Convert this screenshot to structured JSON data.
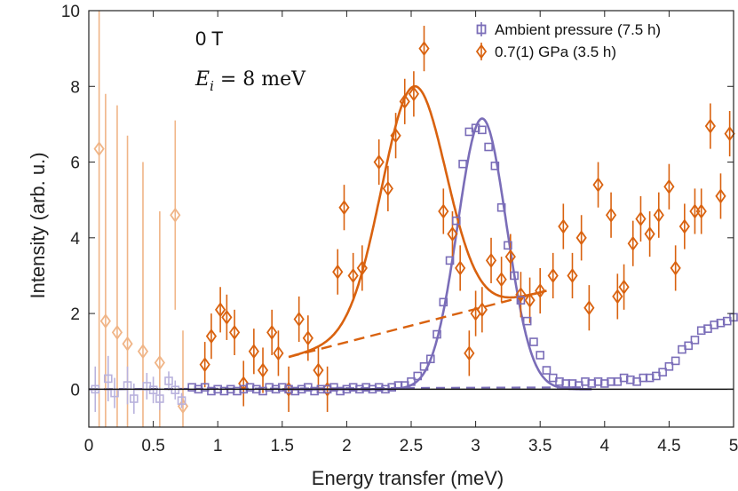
{
  "chart_data": {
    "type": "scatter",
    "xlabel": "Energy transfer (meV)",
    "ylabel": "Intensity (arb. u.)",
    "xlim": [
      0,
      5
    ],
    "ylim": [
      -1,
      10
    ],
    "xticks": [
      0,
      0.5,
      1,
      1.5,
      2,
      2.5,
      3,
      3.5,
      4,
      4.5,
      5
    ],
    "xtick_labels": [
      "0",
      "0.5",
      "1",
      "1.5",
      "2",
      "2.5",
      "3",
      "3.5",
      "4",
      "4.5",
      "5"
    ],
    "yticks": [
      0,
      2,
      4,
      6,
      8,
      10
    ],
    "ytick_labels": [
      "0",
      "2",
      "4",
      "6",
      "8",
      "10"
    ],
    "grid": false,
    "legend_position": "top-right",
    "annotations": {
      "field": "0 T",
      "energy": "E_i = 8 meV"
    },
    "colors": {
      "ambient": "#7A6DB8",
      "pressure": "#D9620F",
      "pressure_faded": "#F0B587",
      "ambient_faded": "#B9B2DD"
    },
    "series": [
      {
        "name": "Ambient pressure (7.5 h)",
        "marker": "square",
        "faded_points": [
          {
            "x": 0.05,
            "y": 0.0,
            "err": 0.6
          },
          {
            "x": 0.15,
            "y": 0.28,
            "err": 0.6
          },
          {
            "x": 0.2,
            "y": -0.1,
            "err": 0.4
          },
          {
            "x": 0.3,
            "y": 0.1,
            "err": 0.5
          },
          {
            "x": 0.35,
            "y": -0.25,
            "err": 0.4
          },
          {
            "x": 0.45,
            "y": 0.08,
            "err": 0.35
          },
          {
            "x": 0.5,
            "y": -0.02,
            "err": 0.35
          },
          {
            "x": 0.55,
            "y": -0.25,
            "err": 0.3
          },
          {
            "x": 0.62,
            "y": 0.22,
            "err": 0.25
          },
          {
            "x": 0.67,
            "y": -0.02,
            "err": 0.25
          },
          {
            "x": 0.72,
            "y": -0.3,
            "err": 0.2
          }
        ],
        "points": [
          {
            "x": 0.8,
            "y": 0.05
          },
          {
            "x": 0.85,
            "y": 0.0
          },
          {
            "x": 0.9,
            "y": 0.05
          },
          {
            "x": 0.95,
            "y": -0.05
          },
          {
            "x": 1.0,
            "y": 0.0
          },
          {
            "x": 1.05,
            "y": -0.05
          },
          {
            "x": 1.1,
            "y": 0.0
          },
          {
            "x": 1.15,
            "y": -0.05
          },
          {
            "x": 1.2,
            "y": 0.0
          },
          {
            "x": 1.25,
            "y": 0.05
          },
          {
            "x": 1.3,
            "y": 0.0
          },
          {
            "x": 1.35,
            "y": -0.05
          },
          {
            "x": 1.4,
            "y": 0.05
          },
          {
            "x": 1.45,
            "y": 0.0
          },
          {
            "x": 1.5,
            "y": 0.05
          },
          {
            "x": 1.55,
            "y": 0.0
          },
          {
            "x": 1.6,
            "y": -0.05
          },
          {
            "x": 1.65,
            "y": 0.0
          },
          {
            "x": 1.7,
            "y": 0.05
          },
          {
            "x": 1.75,
            "y": -0.05
          },
          {
            "x": 1.8,
            "y": 0.0
          },
          {
            "x": 1.85,
            "y": 0.0
          },
          {
            "x": 1.9,
            "y": 0.05
          },
          {
            "x": 1.95,
            "y": -0.05
          },
          {
            "x": 2.0,
            "y": 0.0
          },
          {
            "x": 2.05,
            "y": 0.05
          },
          {
            "x": 2.1,
            "y": 0.0
          },
          {
            "x": 2.15,
            "y": 0.05
          },
          {
            "x": 2.2,
            "y": 0.0
          },
          {
            "x": 2.25,
            "y": 0.05
          },
          {
            "x": 2.3,
            "y": 0.0
          },
          {
            "x": 2.35,
            "y": 0.05
          },
          {
            "x": 2.4,
            "y": 0.1
          },
          {
            "x": 2.45,
            "y": 0.1
          },
          {
            "x": 2.5,
            "y": 0.2
          },
          {
            "x": 2.55,
            "y": 0.35
          },
          {
            "x": 2.6,
            "y": 0.6
          },
          {
            "x": 2.65,
            "y": 0.8
          },
          {
            "x": 2.7,
            "y": 1.45
          },
          {
            "x": 2.75,
            "y": 2.3
          },
          {
            "x": 2.8,
            "y": 3.4
          },
          {
            "x": 2.85,
            "y": 4.45
          },
          {
            "x": 2.9,
            "y": 5.95
          },
          {
            "x": 2.95,
            "y": 6.8
          },
          {
            "x": 3.0,
            "y": 6.9
          },
          {
            "x": 3.05,
            "y": 6.85
          },
          {
            "x": 3.1,
            "y": 6.4
          },
          {
            "x": 3.15,
            "y": 5.9
          },
          {
            "x": 3.2,
            "y": 4.8
          },
          {
            "x": 3.25,
            "y": 3.8
          },
          {
            "x": 3.3,
            "y": 3.0
          },
          {
            "x": 3.35,
            "y": 2.35
          },
          {
            "x": 3.4,
            "y": 1.8
          },
          {
            "x": 3.45,
            "y": 1.25
          },
          {
            "x": 3.5,
            "y": 0.9
          },
          {
            "x": 3.55,
            "y": 0.5
          },
          {
            "x": 3.6,
            "y": 0.3
          },
          {
            "x": 3.65,
            "y": 0.2
          },
          {
            "x": 3.7,
            "y": 0.15
          },
          {
            "x": 3.75,
            "y": 0.15
          },
          {
            "x": 3.8,
            "y": 0.1
          },
          {
            "x": 3.85,
            "y": 0.2
          },
          {
            "x": 3.9,
            "y": 0.15
          },
          {
            "x": 3.95,
            "y": 0.2
          },
          {
            "x": 4.0,
            "y": 0.15
          },
          {
            "x": 4.05,
            "y": 0.2
          },
          {
            "x": 4.1,
            "y": 0.2
          },
          {
            "x": 4.15,
            "y": 0.3
          },
          {
            "x": 4.2,
            "y": 0.25
          },
          {
            "x": 4.25,
            "y": 0.2
          },
          {
            "x": 4.3,
            "y": 0.3
          },
          {
            "x": 4.35,
            "y": 0.3
          },
          {
            "x": 4.4,
            "y": 0.35
          },
          {
            "x": 4.45,
            "y": 0.45
          },
          {
            "x": 4.5,
            "y": 0.6
          },
          {
            "x": 4.55,
            "y": 0.75
          },
          {
            "x": 4.6,
            "y": 1.05
          },
          {
            "x": 4.65,
            "y": 1.15
          },
          {
            "x": 4.7,
            "y": 1.3
          },
          {
            "x": 4.75,
            "y": 1.55
          },
          {
            "x": 4.8,
            "y": 1.6
          },
          {
            "x": 4.85,
            "y": 1.7
          },
          {
            "x": 4.9,
            "y": 1.75
          },
          {
            "x": 4.95,
            "y": 1.8
          },
          {
            "x": 5.0,
            "y": 1.9
          }
        ],
        "fit": {
          "type": "gaussian",
          "center": 3.05,
          "amplitude": 7.15,
          "sigma": 0.19,
          "range": [
            1.5,
            3.9
          ]
        },
        "baseline": {
          "x": [
            0.0,
            3.85
          ],
          "y": [
            0.0,
            0.05
          ]
        }
      },
      {
        "name": "0.7(1) GPa (3.5 h)",
        "marker": "diamond",
        "faded_points": [
          {
            "x": 0.08,
            "y": 6.35,
            "err": 9.0
          },
          {
            "x": 0.13,
            "y": 1.8,
            "err": 6.0
          },
          {
            "x": 0.22,
            "y": 1.5,
            "err": 6.0
          },
          {
            "x": 0.3,
            "y": 1.2,
            "err": 5.5
          },
          {
            "x": 0.42,
            "y": 1.0,
            "err": 5.0
          },
          {
            "x": 0.55,
            "y": 0.7,
            "err": 4.0
          },
          {
            "x": 0.67,
            "y": 4.6,
            "err": 2.5
          },
          {
            "x": 0.73,
            "y": -0.45,
            "err": 2.0
          }
        ],
        "points": [
          {
            "x": 0.9,
            "y": 0.65,
            "err": 0.6
          },
          {
            "x": 0.95,
            "y": 1.4,
            "err": 0.6
          },
          {
            "x": 1.02,
            "y": 2.1,
            "err": 0.6
          },
          {
            "x": 1.07,
            "y": 1.9,
            "err": 0.6
          },
          {
            "x": 1.13,
            "y": 1.5,
            "err": 0.6
          },
          {
            "x": 1.2,
            "y": 0.15,
            "err": 0.6
          },
          {
            "x": 1.28,
            "y": 1.0,
            "err": 0.6
          },
          {
            "x": 1.35,
            "y": 0.5,
            "err": 0.6
          },
          {
            "x": 1.42,
            "y": 1.5,
            "err": 0.6
          },
          {
            "x": 1.47,
            "y": 0.95,
            "err": 0.6
          },
          {
            "x": 1.55,
            "y": 0.0,
            "err": 0.6
          },
          {
            "x": 1.63,
            "y": 1.85,
            "err": 0.6
          },
          {
            "x": 1.7,
            "y": 1.35,
            "err": 0.6
          },
          {
            "x": 1.78,
            "y": 0.5,
            "err": 0.6
          },
          {
            "x": 1.85,
            "y": 0.0,
            "err": 0.6
          },
          {
            "x": 1.93,
            "y": 3.1,
            "err": 0.6
          },
          {
            "x": 1.98,
            "y": 4.8,
            "err": 0.6
          },
          {
            "x": 2.05,
            "y": 3.0,
            "err": 0.6
          },
          {
            "x": 2.12,
            "y": 3.2,
            "err": 0.6
          },
          {
            "x": 2.25,
            "y": 6.0,
            "err": 0.6
          },
          {
            "x": 2.32,
            "y": 5.3,
            "err": 0.6
          },
          {
            "x": 2.38,
            "y": 6.7,
            "err": 0.6
          },
          {
            "x": 2.45,
            "y": 7.6,
            "err": 0.6
          },
          {
            "x": 2.52,
            "y": 7.8,
            "err": 0.6
          },
          {
            "x": 2.6,
            "y": 9.0,
            "err": 0.6
          },
          {
            "x": 2.75,
            "y": 4.7,
            "err": 0.6
          },
          {
            "x": 2.82,
            "y": 4.1,
            "err": 0.6
          },
          {
            "x": 2.88,
            "y": 3.2,
            "err": 0.6
          },
          {
            "x": 2.95,
            "y": 0.95,
            "err": 0.6
          },
          {
            "x": 3.0,
            "y": 2.0,
            "err": 0.6
          },
          {
            "x": 3.05,
            "y": 2.1,
            "err": 0.6
          },
          {
            "x": 3.12,
            "y": 3.4,
            "err": 0.6
          },
          {
            "x": 3.2,
            "y": 2.9,
            "err": 0.6
          },
          {
            "x": 3.27,
            "y": 3.5,
            "err": 0.6
          },
          {
            "x": 3.35,
            "y": 2.5,
            "err": 0.6
          },
          {
            "x": 3.42,
            "y": 2.35,
            "err": 0.6
          },
          {
            "x": 3.5,
            "y": 2.6,
            "err": 0.6
          },
          {
            "x": 3.6,
            "y": 3.0,
            "err": 0.6
          },
          {
            "x": 3.68,
            "y": 4.3,
            "err": 0.6
          },
          {
            "x": 3.75,
            "y": 3.0,
            "err": 0.6
          },
          {
            "x": 3.82,
            "y": 4.0,
            "err": 0.6
          },
          {
            "x": 3.88,
            "y": 2.15,
            "err": 0.6
          },
          {
            "x": 3.95,
            "y": 5.4,
            "err": 0.6
          },
          {
            "x": 4.05,
            "y": 4.6,
            "err": 0.6
          },
          {
            "x": 4.1,
            "y": 2.45,
            "err": 0.6
          },
          {
            "x": 4.15,
            "y": 2.7,
            "err": 0.6
          },
          {
            "x": 4.22,
            "y": 3.85,
            "err": 0.6
          },
          {
            "x": 4.28,
            "y": 4.5,
            "err": 0.6
          },
          {
            "x": 4.35,
            "y": 4.1,
            "err": 0.6
          },
          {
            "x": 4.42,
            "y": 4.6,
            "err": 0.6
          },
          {
            "x": 4.5,
            "y": 5.35,
            "err": 0.6
          },
          {
            "x": 4.55,
            "y": 3.2,
            "err": 0.6
          },
          {
            "x": 4.62,
            "y": 4.3,
            "err": 0.6
          },
          {
            "x": 4.7,
            "y": 4.7,
            "err": 0.6
          },
          {
            "x": 4.75,
            "y": 4.7,
            "err": 0.6
          },
          {
            "x": 4.82,
            "y": 6.95,
            "err": 0.6
          },
          {
            "x": 4.9,
            "y": 5.1,
            "err": 0.6
          },
          {
            "x": 4.97,
            "y": 6.75,
            "err": 0.6
          }
        ],
        "fit": {
          "type": "gaussian_plus_linear",
          "center": 2.52,
          "amplitude": 6.3,
          "sigma": 0.25,
          "bg_start": [
            1.55,
            0.85
          ],
          "bg_end": [
            3.55,
            2.6
          ]
        },
        "background_dashed": {
          "x": [
            1.55,
            3.55
          ],
          "y": [
            0.85,
            2.6
          ]
        }
      }
    ]
  }
}
